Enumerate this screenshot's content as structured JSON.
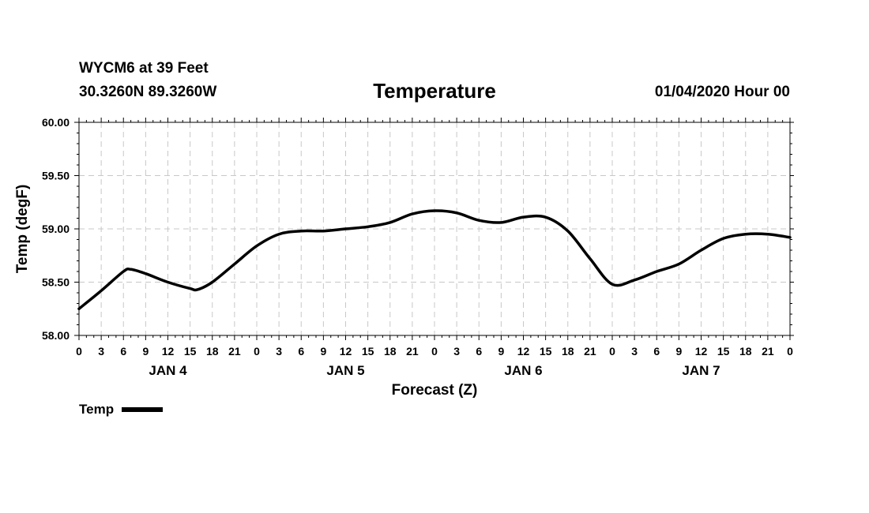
{
  "header": {
    "station": "WYCM6 at 39 Feet",
    "coords": "30.3260N 89.3260W",
    "title": "Temperature",
    "date": "01/04/2020 Hour 00"
  },
  "chart_data": {
    "type": "line",
    "title": "Temperature",
    "xlabel": "Forecast (Z)",
    "ylabel": "Temp (degF)",
    "ylim": [
      58.0,
      60.0
    ],
    "xlim": [
      0,
      96
    ],
    "y_ticks": [
      "58.00",
      "58.50",
      "59.00",
      "59.50",
      "60.00"
    ],
    "x_tick_labels": [
      "0",
      "3",
      "6",
      "9",
      "12",
      "15",
      "18",
      "21",
      "0",
      "3",
      "6",
      "9",
      "12",
      "15",
      "18",
      "21",
      "0",
      "3",
      "6",
      "9",
      "12",
      "15",
      "18",
      "21",
      "0",
      "3",
      "6",
      "9",
      "12",
      "15",
      "18",
      "21",
      "0"
    ],
    "day_labels": [
      {
        "label": "JAN 4",
        "hour": 12
      },
      {
        "label": "JAN 5",
        "hour": 36
      },
      {
        "label": "JAN 6",
        "hour": 60
      },
      {
        "label": "JAN 7",
        "hour": 84
      }
    ],
    "grid": true,
    "legend": [
      {
        "name": "Temp",
        "style": "thick black line",
        "placement": "bottom-left"
      }
    ],
    "series": [
      {
        "name": "Temp",
        "color": "#000000",
        "x": [
          0,
          3,
          6,
          7,
          9,
          12,
          15,
          16,
          18,
          21,
          24,
          27,
          30,
          33,
          36,
          39,
          42,
          45,
          48,
          51,
          54,
          57,
          60,
          63,
          66,
          69,
          72,
          75,
          78,
          81,
          84,
          87,
          90,
          93,
          96
        ],
        "y": [
          58.25,
          58.42,
          58.6,
          58.62,
          58.58,
          58.5,
          58.44,
          58.43,
          58.5,
          58.67,
          58.84,
          58.95,
          58.98,
          58.98,
          59.0,
          59.02,
          59.06,
          59.14,
          59.17,
          59.15,
          59.08,
          59.06,
          59.11,
          59.11,
          58.98,
          58.72,
          58.48,
          58.52,
          58.6,
          58.67,
          58.8,
          58.91,
          58.95,
          58.95,
          58.92
        ]
      }
    ]
  },
  "legend": {
    "label": "Temp"
  }
}
